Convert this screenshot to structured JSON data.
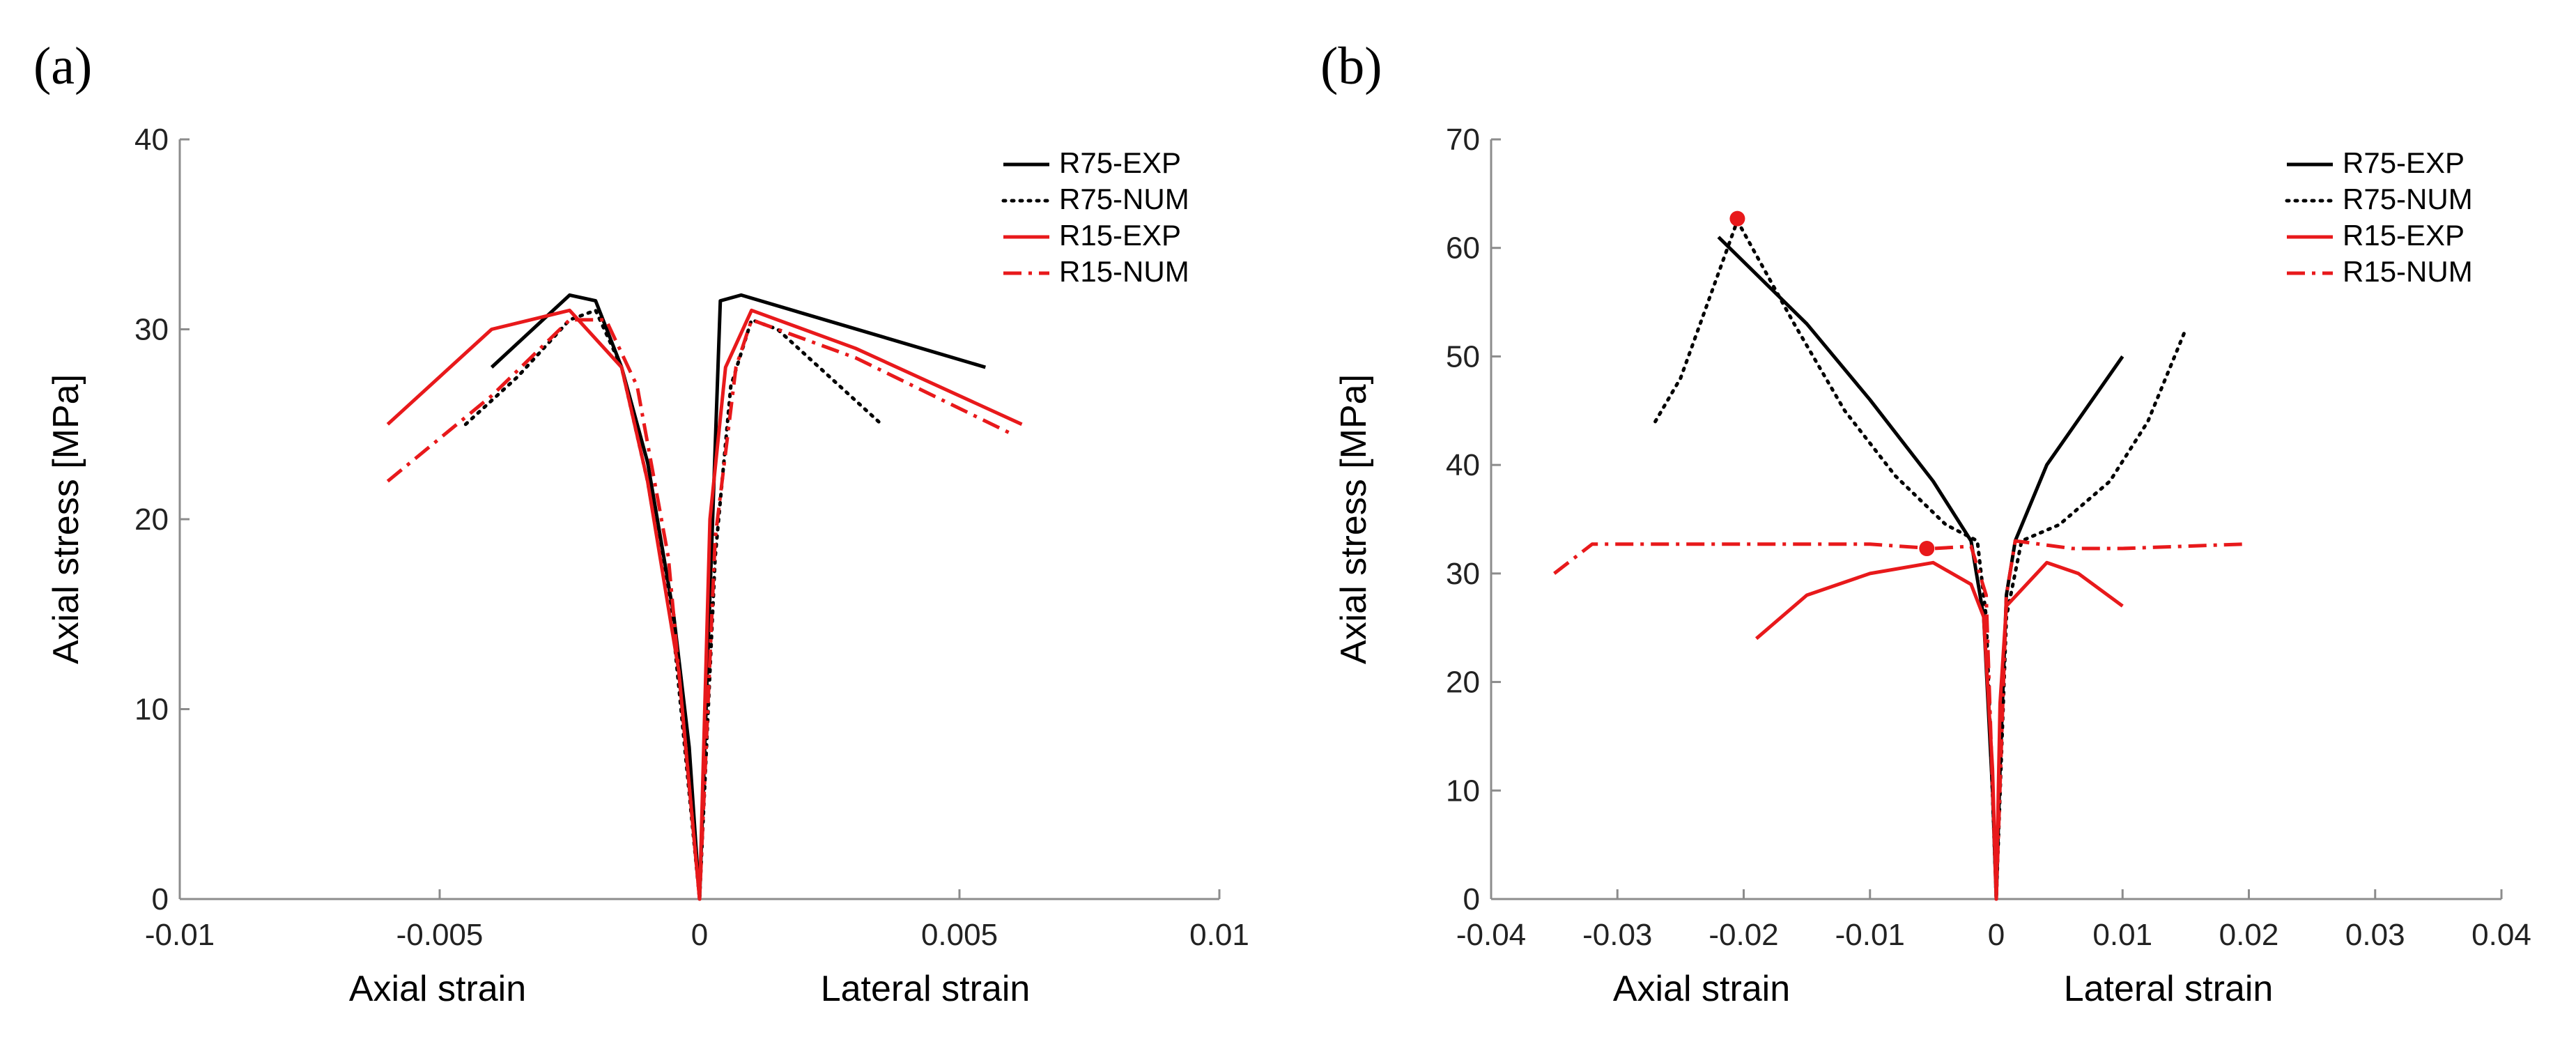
{
  "chart_data": [
    {
      "type": "line",
      "panel_label": "(a)",
      "ylabel": "Axial stress [MPa]",
      "xlabel_left": "Axial strain",
      "xlabel_right": "Lateral strain",
      "xlim": [
        -0.01,
        0.01
      ],
      "ylim": [
        0,
        40
      ],
      "xticks": [
        "-0.01",
        "-0.005",
        "0",
        "0.005",
        "0.01"
      ],
      "xtick_values": [
        -0.01,
        -0.005,
        0,
        0.005,
        0.01
      ],
      "yticks": [
        "0",
        "10",
        "20",
        "30",
        "40"
      ],
      "ytick_values": [
        0,
        10,
        20,
        30,
        40
      ],
      "legend_position": "top-right",
      "series": [
        {
          "name": "R75-EXP",
          "color": "#000000",
          "style": "solid",
          "points": [
            [
              -0.004,
              28
            ],
            [
              -0.0025,
              31.8
            ],
            [
              -0.002,
              31.5
            ],
            [
              -0.0015,
              28
            ],
            [
              -0.001,
              23
            ],
            [
              -0.0005,
              15
            ],
            [
              -0.0002,
              8
            ],
            [
              0,
              0
            ],
            [
              0.0002,
              16
            ],
            [
              0.0004,
              31.5
            ],
            [
              0.0008,
              31.8
            ],
            [
              0.0055,
              28
            ]
          ]
        },
        {
          "name": "R75-NUM",
          "color": "#000000",
          "style": "dotted",
          "points": [
            [
              -0.0045,
              25
            ],
            [
              -0.0035,
              27.5
            ],
            [
              -0.0025,
              30.5
            ],
            [
              -0.002,
              31
            ],
            [
              -0.0015,
              28
            ],
            [
              -0.001,
              22
            ],
            [
              -0.0005,
              14
            ],
            [
              0,
              0
            ],
            [
              0.0003,
              18
            ],
            [
              0.0006,
              27
            ],
            [
              0.001,
              30.5
            ],
            [
              0.0015,
              30
            ],
            [
              0.0025,
              27.5
            ],
            [
              0.0035,
              25
            ]
          ]
        },
        {
          "name": "R15-EXP",
          "color": "#e8191b",
          "style": "solid",
          "points": [
            [
              -0.006,
              25
            ],
            [
              -0.004,
              30
            ],
            [
              -0.0025,
              31
            ],
            [
              -0.0015,
              28
            ],
            [
              -0.001,
              22
            ],
            [
              -0.0004,
              12
            ],
            [
              0,
              0
            ],
            [
              0.0002,
              20
            ],
            [
              0.0005,
              28
            ],
            [
              0.001,
              31
            ],
            [
              0.003,
              29
            ],
            [
              0.0062,
              25
            ]
          ]
        },
        {
          "name": "R15-NUM",
          "color": "#e8191b",
          "style": "dashdot",
          "points": [
            [
              -0.006,
              22
            ],
            [
              -0.004,
              26.5
            ],
            [
              -0.0025,
              30.5
            ],
            [
              -0.0018,
              30.5
            ],
            [
              -0.0012,
              27
            ],
            [
              -0.0006,
              18
            ],
            [
              0,
              0
            ],
            [
              0.0003,
              19
            ],
            [
              0.0007,
              28
            ],
            [
              0.001,
              30.5
            ],
            [
              0.003,
              28.5
            ],
            [
              0.006,
              24.5
            ]
          ]
        }
      ]
    },
    {
      "type": "line",
      "panel_label": "(b)",
      "ylabel": "Axial stress [MPa]",
      "xlabel_left": "Axial strain",
      "xlabel_right": "Lateral strain",
      "xlim": [
        -0.04,
        0.04
      ],
      "ylim": [
        0,
        70
      ],
      "xticks": [
        "-0.04",
        "-0.03",
        "-0.02",
        "-0.01",
        "0",
        "0.01",
        "0.02",
        "0.03",
        "0.04"
      ],
      "xtick_values": [
        -0.04,
        -0.03,
        -0.02,
        -0.01,
        0,
        0.01,
        0.02,
        0.03,
        0.04
      ],
      "yticks": [
        "0",
        "10",
        "20",
        "30",
        "40",
        "50",
        "60",
        "70"
      ],
      "ytick_values": [
        0,
        10,
        20,
        30,
        40,
        50,
        60,
        70
      ],
      "legend_position": "top-right",
      "series": [
        {
          "name": "R75-EXP",
          "color": "#000000",
          "style": "solid",
          "points": [
            [
              -0.022,
              61
            ],
            [
              -0.015,
              53
            ],
            [
              -0.01,
              46
            ],
            [
              -0.005,
              38.5
            ],
            [
              -0.002,
              33
            ],
            [
              -0.001,
              26
            ],
            [
              -0.0003,
              10
            ],
            [
              0,
              0
            ],
            [
              0.0003,
              12
            ],
            [
              0.0008,
              28
            ],
            [
              0.0015,
              33
            ],
            [
              0.004,
              40
            ],
            [
              0.01,
              50
            ]
          ]
        },
        {
          "name": "R75-NUM",
          "color": "#000000",
          "style": "dotted",
          "points": [
            [
              -0.027,
              44
            ],
            [
              -0.025,
              48
            ],
            [
              -0.0205,
              62.5
            ],
            [
              -0.016,
              53
            ],
            [
              -0.012,
              45
            ],
            [
              -0.008,
              39
            ],
            [
              -0.004,
              34.5
            ],
            [
              -0.0015,
              33
            ],
            [
              -0.0008,
              26
            ],
            [
              0,
              0
            ],
            [
              0.0008,
              26
            ],
            [
              0.002,
              33
            ],
            [
              0.005,
              34.5
            ],
            [
              0.009,
              38.5
            ],
            [
              0.012,
              44
            ],
            [
              0.015,
              52.5
            ]
          ]
        },
        {
          "name": "R15-EXP",
          "color": "#e8191b",
          "style": "solid",
          "points": [
            [
              -0.019,
              24
            ],
            [
              -0.015,
              28
            ],
            [
              -0.01,
              30
            ],
            [
              -0.005,
              31
            ],
            [
              -0.002,
              29
            ],
            [
              -0.001,
              26
            ],
            [
              -0.0003,
              12
            ],
            [
              0,
              0
            ],
            [
              0.0003,
              18
            ],
            [
              0.0008,
              27
            ],
            [
              0.004,
              31
            ],
            [
              0.0065,
              30
            ],
            [
              0.01,
              27
            ]
          ]
        },
        {
          "name": "R15-NUM",
          "color": "#e8191b",
          "style": "dashdot",
          "points": [
            [
              -0.035,
              30
            ],
            [
              -0.032,
              32.7
            ],
            [
              -0.01,
              32.7
            ],
            [
              -0.005,
              32.3
            ],
            [
              -0.002,
              32.5
            ],
            [
              -0.0008,
              28
            ],
            [
              0,
              0
            ],
            [
              0.0008,
              28
            ],
            [
              0.0015,
              33
            ],
            [
              0.006,
              32.3
            ],
            [
              0.01,
              32.3
            ],
            [
              0.0195,
              32.7
            ]
          ]
        }
      ],
      "markers": [
        {
          "x": -0.0205,
          "y": 62.7,
          "color": "#e8191b"
        },
        {
          "x": -0.0055,
          "y": 32.3,
          "color": "#e8191b"
        }
      ]
    }
  ]
}
